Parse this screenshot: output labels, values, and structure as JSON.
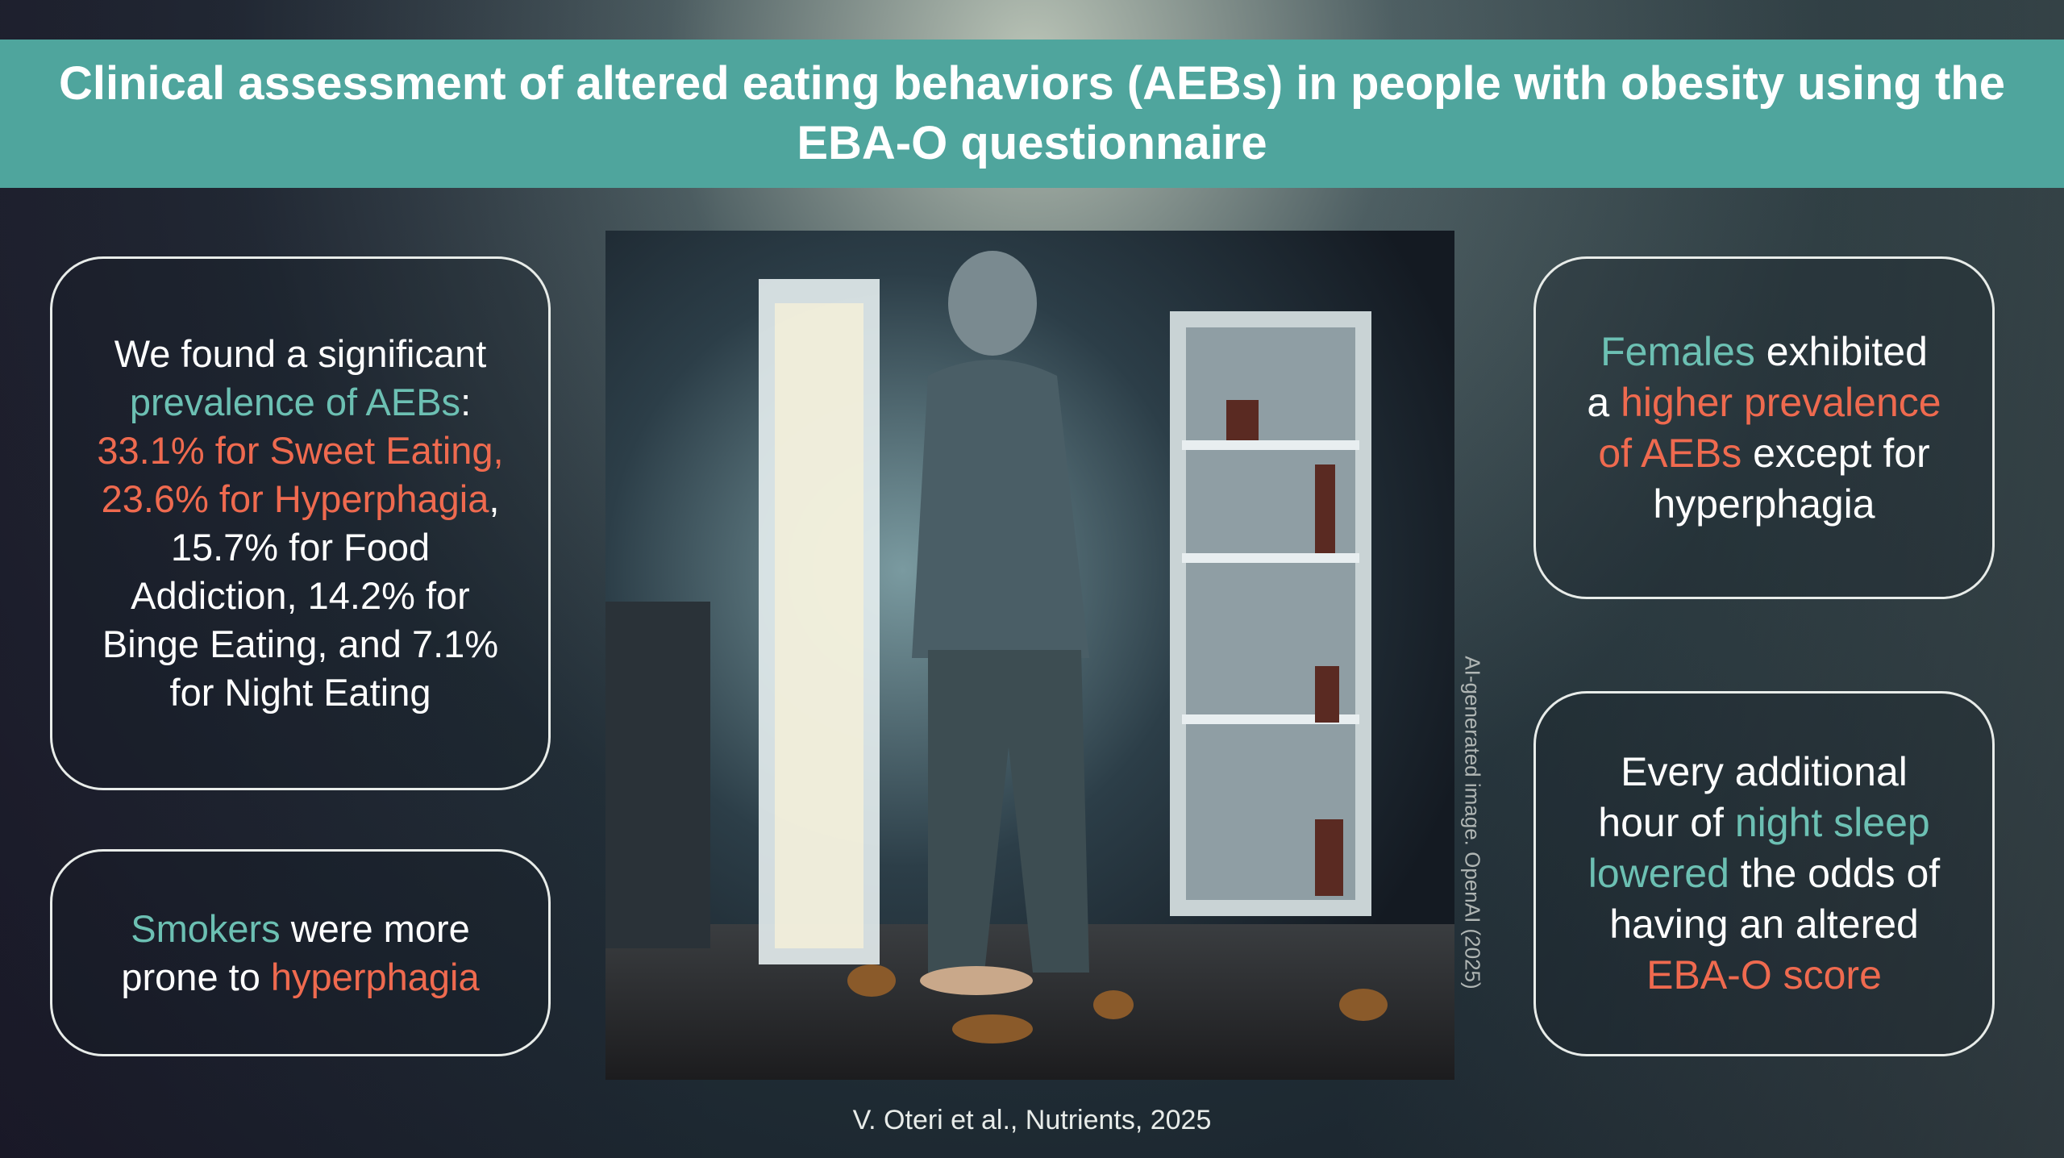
{
  "title": "Clinical assessment of altered eating behaviors (AEBs) in people with obesity using the EBA-O questionnaire",
  "panels": [
    {
      "segments": [
        {
          "text": "We found a significant ",
          "color": "#ffffff"
        },
        {
          "text": "prevalence of AEBs",
          "color": "#6cc0b3"
        },
        {
          "text": ": ",
          "color": "#ffffff"
        },
        {
          "text": "33.1% for Sweet Eating, 23.6% for Hyperphagia",
          "color": "#ef6a4f"
        },
        {
          "text": ", 15.7% for Food Addiction, 14.2% for Binge Eating, and 7.1% for Night Eating",
          "color": "#ffffff"
        }
      ]
    },
    {
      "segments": [
        {
          "text": "Smokers",
          "color": "#6cc0b3"
        },
        {
          "text": " were more prone to ",
          "color": "#ffffff"
        },
        {
          "text": "hyperphagia",
          "color": "#ef6a4f"
        }
      ]
    },
    {
      "segments": [
        {
          "text": "Females",
          "color": "#6cc0b3"
        },
        {
          "text": " exhibited a ",
          "color": "#ffffff"
        },
        {
          "text": "higher prevalence of AEBs",
          "color": "#ef6a4f"
        },
        {
          "text": " except for hyperphagia",
          "color": "#ffffff"
        }
      ]
    },
    {
      "segments": [
        {
          "text": "Every additional hour of ",
          "color": "#ffffff"
        },
        {
          "text": "night sleep lowered",
          "color": "#6cc0b3"
        },
        {
          "text": " the odds of having an altered ",
          "color": "#ffffff"
        },
        {
          "text": "EBA-O score",
          "color": "#ef6a4f"
        }
      ]
    }
  ],
  "image_credit": "AI-generated image. OpenAI (2025)",
  "citation": "V. Oteri et al., Nutrients, 2025"
}
